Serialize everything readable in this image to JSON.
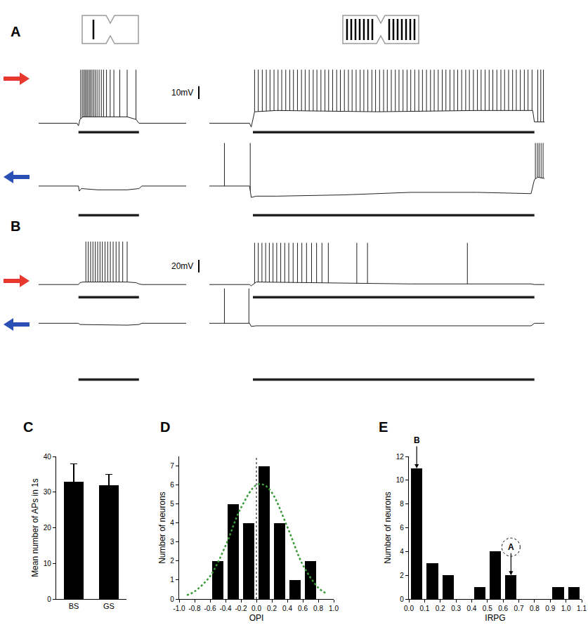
{
  "panel_labels": [
    "A",
    "B",
    "C",
    "D",
    "E"
  ],
  "scale_bars": [
    {
      "value": 10,
      "from": 19,
      "label": "10mV"
    },
    {
      "value": 20,
      "from": 19,
      "label": "20mV"
    }
  ],
  "chart_data": [
    {
      "type": "line",
      "color": "#222222",
      "tick_labels": false,
      "xlim": [
        0,
        100
      ],
      "ylim": [
        -8,
        46
      ],
      "x": [
        0,
        26,
        27,
        28,
        30,
        60,
        66,
        68,
        70,
        100
      ],
      "values": [
        0,
        0,
        -2,
        3,
        5,
        5,
        3,
        0,
        0,
        0
      ],
      "spikes": [
        28.5,
        29.6,
        30.6,
        31.5,
        32.4,
        33.3,
        34.3,
        35.2,
        36.2,
        37.3,
        38.4,
        39.6,
        41,
        42.5,
        44,
        46,
        48.5,
        51,
        55,
        60,
        66
      ],
      "spike_peak": 42,
      "stimulus": [
        27,
        68
      ],
      "stimulus_level": -7
    },
    {
      "type": "line",
      "color": "#222222",
      "tick_labels": false,
      "xlim": [
        0,
        100
      ],
      "ylim": [
        -8,
        46
      ],
      "x": [
        0,
        12,
        12.5,
        13.5,
        20,
        50,
        80,
        96.5,
        97,
        100
      ],
      "values": [
        0,
        0,
        -3,
        9,
        10,
        9,
        10,
        10,
        1,
        1
      ],
      "spikes": [
        13.5,
        14.6,
        15.8,
        17.0,
        18.1,
        19.3,
        20.5,
        21.6,
        22.8,
        24.0,
        25.1,
        26.3,
        27.5,
        28.6,
        29.8,
        31.0,
        32.1,
        33.3,
        34.5,
        35.6,
        36.8,
        38.0,
        39.1,
        40.3,
        41.5,
        42.6,
        43.8,
        45.0,
        46.1,
        47.3,
        48.5,
        49.6,
        50.8,
        52.0,
        53.1,
        54.3,
        55.5,
        56.6,
        57.8,
        59.0,
        60.1,
        61.3,
        62.5,
        63.6,
        64.8,
        66.0,
        67.1,
        68.3,
        69.5,
        70.6,
        71.8,
        73.0,
        74.1,
        75.3,
        76.5,
        77.6,
        78.8,
        80.0,
        81.1,
        82.3,
        83.5,
        84.6,
        85.8,
        87.0,
        88.1,
        89.3,
        90.5,
        91.6,
        92.8,
        94.0,
        95.1,
        96.3,
        98.0,
        98.9,
        99.7
      ],
      "spike_peak": 42,
      "stimulus": [
        13,
        97
      ],
      "stimulus_level": -7
    },
    {
      "type": "line",
      "color": "#222222",
      "tick_labels": false,
      "xlim": [
        0,
        100
      ],
      "ylim": [
        -25,
        36
      ],
      "x": [
        0,
        27,
        27.5,
        29,
        40,
        60,
        68,
        70,
        100
      ],
      "values": [
        0,
        0,
        -4,
        -2,
        -3,
        -3,
        -2,
        0,
        0
      ],
      "spikes": [],
      "stimulus": [
        27,
        68
      ],
      "stimulus_level": -23
    },
    {
      "type": "line",
      "color": "#222222",
      "tick_labels": false,
      "xlim": [
        0,
        100
      ],
      "ylim": [
        -25,
        36
      ],
      "x": [
        0,
        12,
        12.5,
        14,
        20,
        40,
        60,
        80,
        96,
        97,
        98,
        100
      ],
      "values": [
        0,
        0,
        -9,
        -8,
        -8,
        -7,
        -5,
        -5,
        -6,
        5,
        7,
        6
      ],
      "spikes": [
        4.5,
        12.2,
        97.3,
        97.9,
        98.4,
        99.0,
        99.6
      ],
      "spike_peak": 34,
      "stimulus": [
        13,
        97
      ],
      "stimulus_level": -23
    },
    {
      "type": "line",
      "color": "#222222",
      "tick_labels": false,
      "xlim": [
        0,
        100
      ],
      "ylim": [
        -22,
        78
      ],
      "x": [
        0,
        27,
        28,
        30,
        60,
        66,
        68,
        70,
        100
      ],
      "values": [
        0,
        0,
        3,
        4,
        4,
        3,
        1,
        0,
        0
      ],
      "spikes": [
        32,
        33.6,
        35.2,
        36.8,
        38.4,
        40,
        41.6,
        43.2,
        45,
        46.8,
        48.6,
        50.5,
        52.5,
        54.5,
        57,
        60
      ],
      "spike_peak": 68,
      "stimulus": [
        27,
        68
      ],
      "stimulus_level": -20
    },
    {
      "type": "line",
      "color": "#222222",
      "tick_labels": false,
      "xlim": [
        0,
        100
      ],
      "ylim": [
        -22,
        78
      ],
      "x": [
        0,
        12,
        12.5,
        14,
        30,
        60,
        96,
        97,
        100
      ],
      "values": [
        0,
        0,
        -2,
        4,
        3,
        1,
        1,
        0,
        0
      ],
      "spikes": [
        13.5,
        14.6,
        15.7,
        16.8,
        17.9,
        19,
        20.1,
        21.3,
        22.5,
        23.7,
        25,
        26.3,
        27.6,
        29,
        30.5,
        32,
        33.6,
        35.5,
        44,
        47.2,
        77
      ],
      "spike_peak": 66,
      "stimulus": [
        13,
        97
      ],
      "stimulus_level": -20
    },
    {
      "type": "line",
      "color": "#222222",
      "tick_labels": false,
      "xlim": [
        0,
        100
      ],
      "ylim": [
        -94,
        67
      ],
      "x": [
        0,
        27,
        28,
        60,
        68,
        70,
        100
      ],
      "values": [
        0,
        0,
        -2,
        -3,
        -2,
        0,
        0
      ],
      "spikes": [],
      "stimulus": [
        27,
        68
      ],
      "stimulus_level": -89
    },
    {
      "type": "line",
      "color": "#222222",
      "tick_labels": false,
      "xlim": [
        0,
        100
      ],
      "ylim": [
        -94,
        67
      ],
      "x": [
        0,
        12,
        12.5,
        14,
        50,
        96,
        97,
        100
      ],
      "values": [
        0,
        0,
        -5,
        -4,
        -4,
        -4,
        0,
        0
      ],
      "spikes": [
        4.5,
        11.8
      ],
      "spike_peak": 55,
      "stimulus": [
        13,
        97
      ],
      "stimulus_level": -89
    },
    {
      "type": "bar",
      "color": "#000000",
      "categories": [
        "BS",
        "GS"
      ],
      "values": [
        33,
        32
      ],
      "errors": [
        5,
        3
      ],
      "ylabel": "Mean number of APs in 1s",
      "ylim": [
        0,
        40
      ],
      "yticks": [
        0,
        10,
        20,
        30,
        40
      ]
    },
    {
      "type": "histogram",
      "color": "#000000",
      "bins": [
        -0.6,
        -0.4,
        -0.2,
        0,
        0.2,
        0.4,
        0.6,
        0.8
      ],
      "values": [
        2,
        5,
        4,
        7,
        4,
        1,
        2
      ],
      "xlabel": "OPI",
      "ylabel": "Number of neurons",
      "xlim": [
        -1,
        1
      ],
      "xticks": [
        {
          "value": -1,
          "label": "-1.0"
        },
        -0.8,
        -0.6,
        -0.4,
        -0.2,
        {
          "value": 0,
          "label": "0.0"
        },
        0.2,
        0.4,
        0.6,
        0.8,
        {
          "value": 1,
          "label": "1.0"
        }
      ],
      "ylim": [
        0,
        7.5
      ],
      "yticks": [
        0,
        1,
        2,
        3,
        4,
        5,
        6,
        7
      ],
      "fit": {
        "x": [
          -0.9,
          -0.8,
          -0.6,
          -0.4,
          -0.2,
          0,
          0.1,
          0.2,
          0.4,
          0.6,
          0.8,
          0.9
        ],
        "values": [
          0.2,
          0.4,
          1.2,
          2.8,
          4.8,
          6.0,
          6.0,
          5.6,
          3.8,
          1.8,
          0.6,
          0.3
        ],
        "color": "#3a9a3a",
        "line_style": "dotted"
      },
      "lines": [
        {
          "x": 0,
          "color": "#000000",
          "line_style": "dotted"
        }
      ]
    },
    {
      "type": "histogram",
      "color": "#000000",
      "bins": [
        0,
        0.1,
        0.2,
        0.3,
        0.4,
        0.5,
        0.6,
        0.7,
        0.8,
        0.9,
        1.0,
        1.1
      ],
      "values": [
        11,
        3,
        2,
        0,
        1,
        4,
        2,
        0,
        0,
        1,
        1
      ],
      "xlabel": "IRPG",
      "ylabel": "Number of neurons",
      "xlim": [
        0,
        1.1
      ],
      "xticks": [
        {
          "value": 0,
          "label": "0.0"
        },
        0.1,
        0.2,
        0.3,
        0.4,
        0.5,
        0.6,
        0.7,
        0.8,
        0.9,
        {
          "value": 1,
          "label": "1.0"
        },
        1.1
      ],
      "ylim": [
        0,
        12
      ],
      "yticks": [
        0,
        2,
        4,
        6,
        8,
        10,
        12
      ],
      "annotations": [
        {
          "text": "B",
          "x": 0.05,
          "y": 11
        },
        {
          "text": "A",
          "x": 0.65,
          "y": 2
        }
      ]
    }
  ]
}
